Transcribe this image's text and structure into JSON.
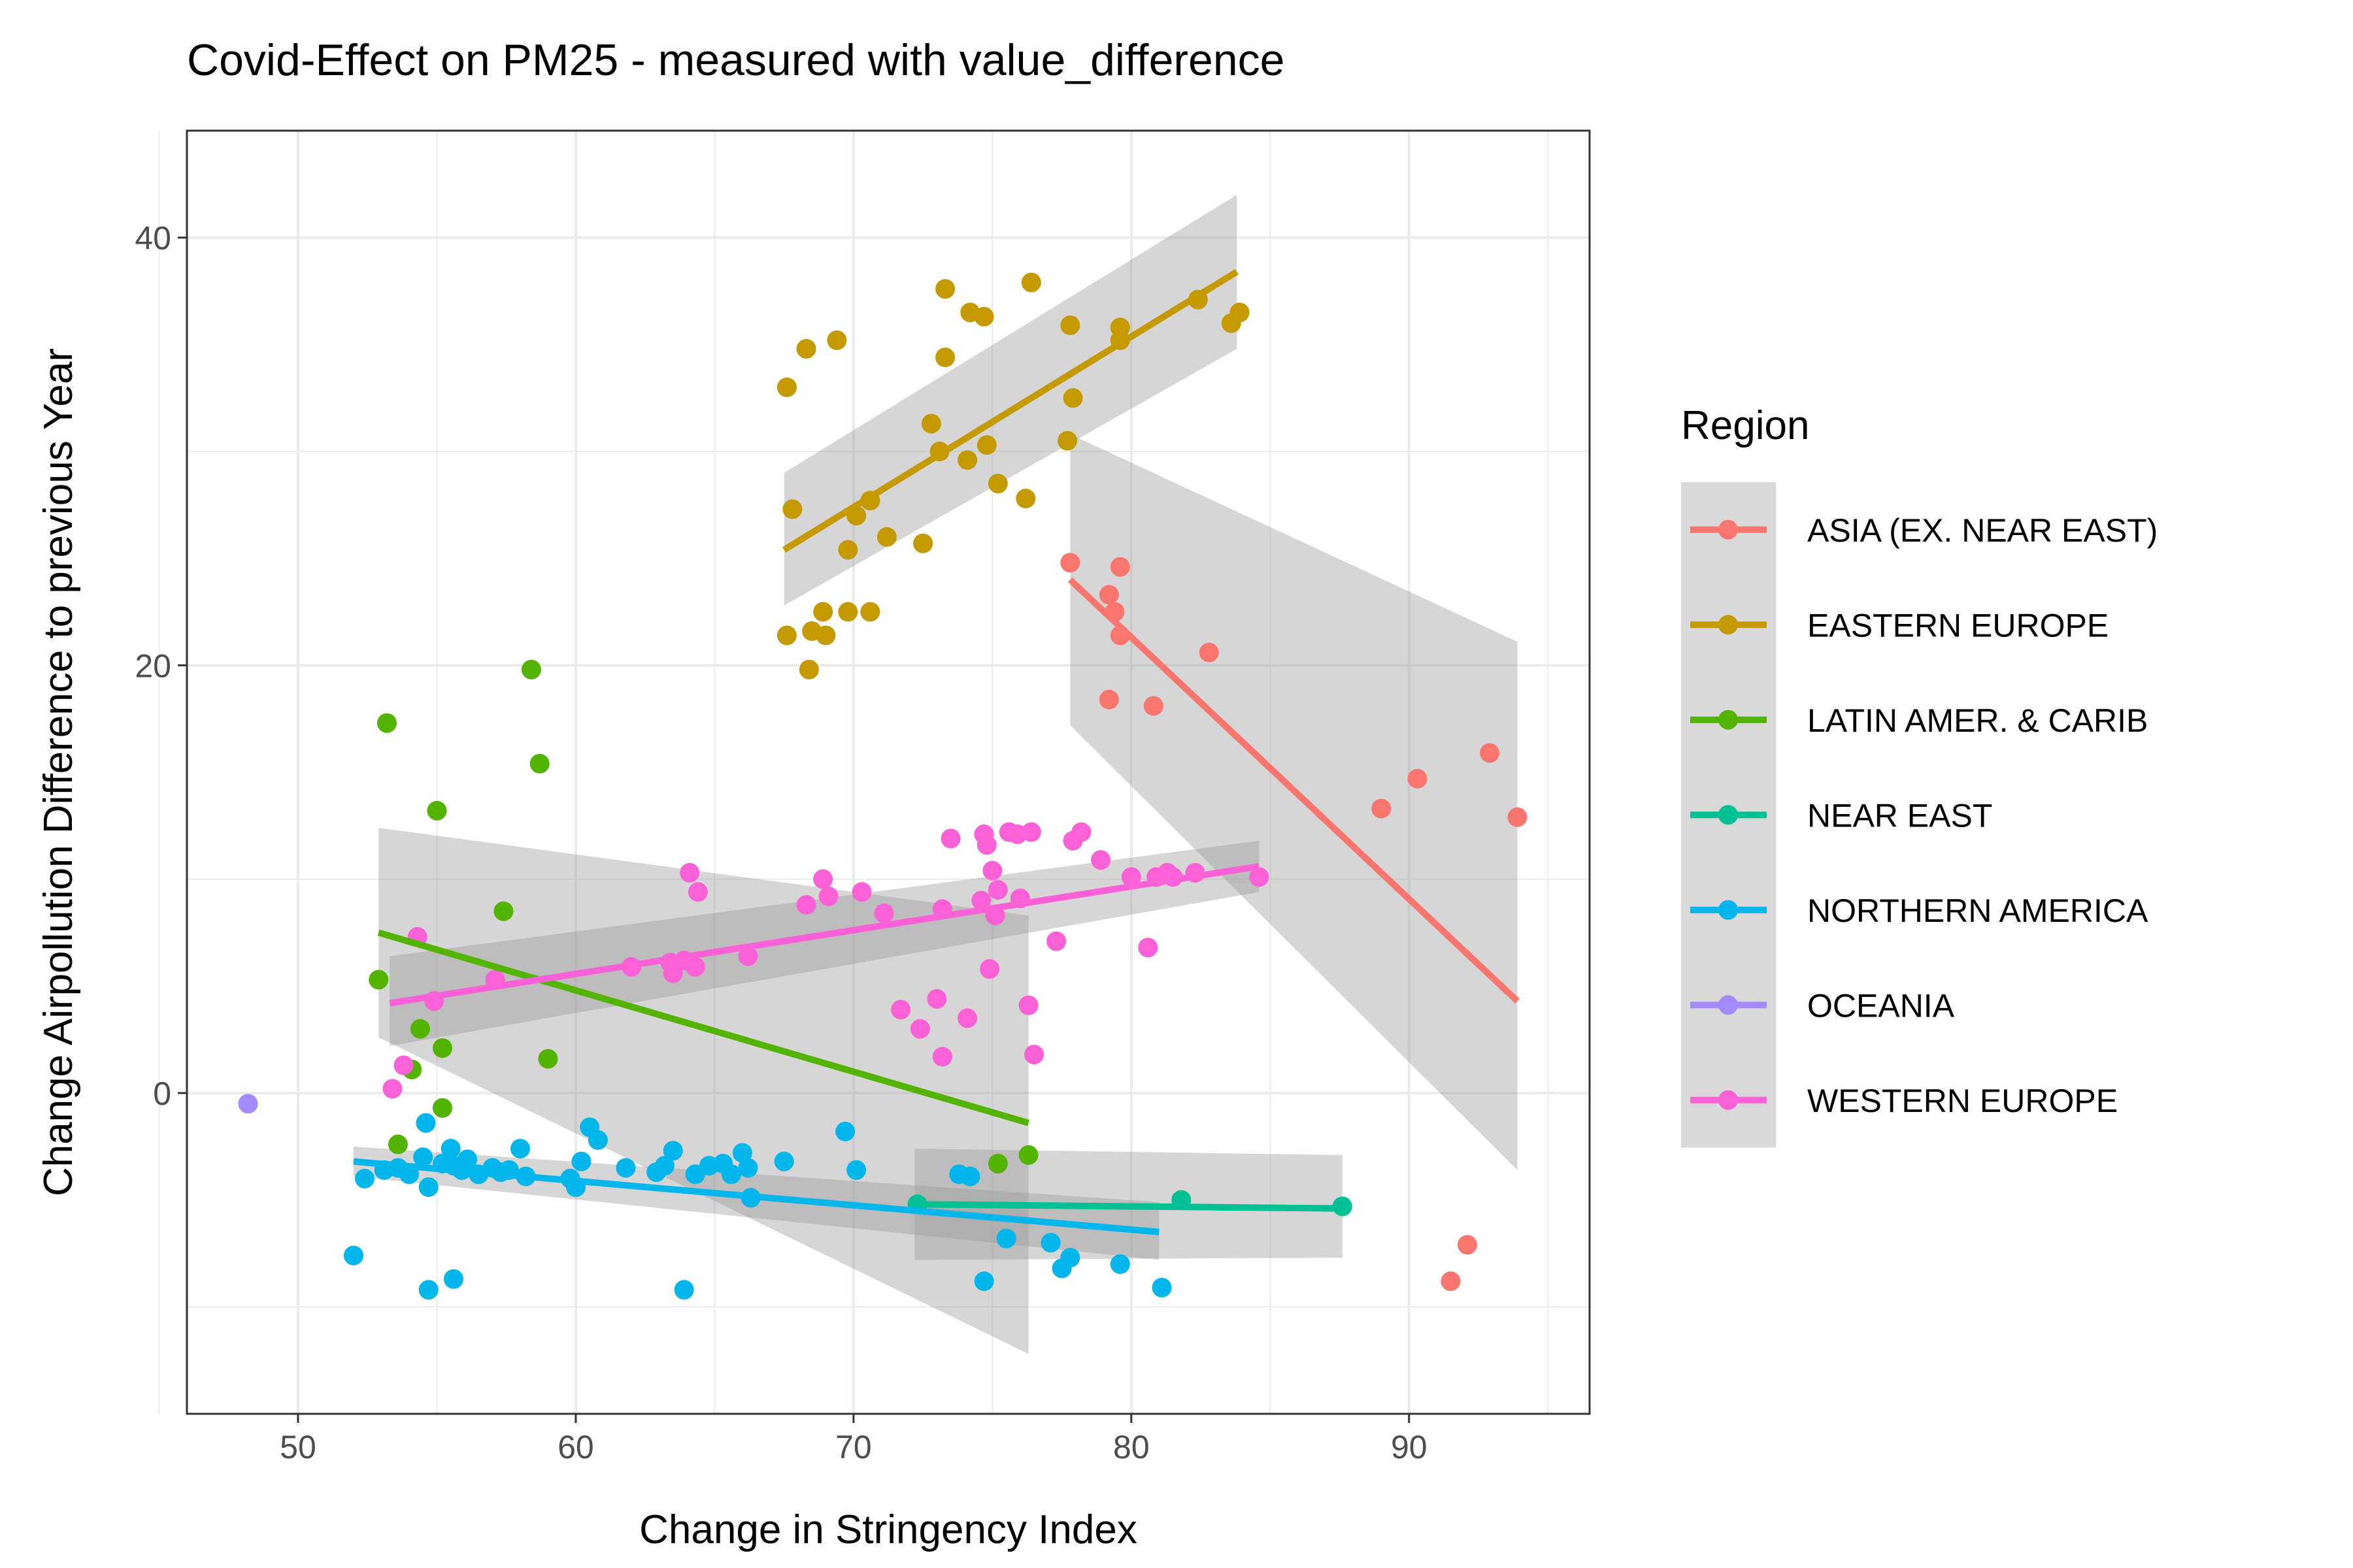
{
  "chart_data": {
    "type": "scatter",
    "title": "Covid-Effect on PM25 - measured with value_difference",
    "xlabel": "Change in Stringency Index",
    "ylabel": "Change Airpollution Difference to previous Year",
    "xlim": [
      46,
      96.5
    ],
    "ylim": [
      -15,
      45
    ],
    "x_ticks": [
      50,
      60,
      70,
      80,
      90
    ],
    "y_ticks": [
      0,
      20,
      40
    ],
    "x_tick_labels": [
      "50",
      "60",
      "70",
      "80",
      "90"
    ],
    "y_tick_labels": [
      "0",
      "20",
      "40"
    ],
    "grid": true,
    "legend": {
      "title": "Region",
      "placement": "right"
    },
    "series": [
      {
        "name": "ASIA (EX. NEAR EAST)",
        "color": "#F8766D",
        "points": [
          [
            77.8,
            24.8
          ],
          [
            79.2,
            23.3
          ],
          [
            79.6,
            24.6
          ],
          [
            79.4,
            22.5
          ],
          [
            79.6,
            21.4
          ],
          [
            82.8,
            20.6
          ],
          [
            79.2,
            18.4
          ],
          [
            80.8,
            18.1
          ],
          [
            89.0,
            13.3
          ],
          [
            90.3,
            14.7
          ],
          [
            92.9,
            15.9
          ],
          [
            93.9,
            12.9
          ],
          [
            91.5,
            -8.8
          ],
          [
            92.1,
            -7.1
          ]
        ],
        "fit": {
          "x": [
            77.8,
            93.9
          ],
          "y": [
            24.0,
            4.3
          ]
        },
        "band": {
          "upper": [
            30.8,
            21.1
          ],
          "lower": [
            17.2,
            -3.6
          ]
        }
      },
      {
        "name": "EASTERN EUROPE",
        "color": "#C49A00",
        "points": [
          [
            67.6,
            33.0
          ],
          [
            68.3,
            34.8
          ],
          [
            69.4,
            35.2
          ],
          [
            67.8,
            27.3
          ],
          [
            70.1,
            27.0
          ],
          [
            70.6,
            27.7
          ],
          [
            71.2,
            26.0
          ],
          [
            72.5,
            25.7
          ],
          [
            69.8,
            25.4
          ],
          [
            72.8,
            31.3
          ],
          [
            73.1,
            30.0
          ],
          [
            73.3,
            34.4
          ],
          [
            73.3,
            37.6
          ],
          [
            74.2,
            36.5
          ],
          [
            74.7,
            36.3
          ],
          [
            74.1,
            29.6
          ],
          [
            74.8,
            30.3
          ],
          [
            75.2,
            28.5
          ],
          [
            76.2,
            27.8
          ],
          [
            76.4,
            37.9
          ],
          [
            77.8,
            35.9
          ],
          [
            77.7,
            30.5
          ],
          [
            77.9,
            32.5
          ],
          [
            79.6,
            35.8
          ],
          [
            79.6,
            35.2
          ],
          [
            82.4,
            37.1
          ],
          [
            83.6,
            36.0
          ],
          [
            83.9,
            36.5
          ],
          [
            67.6,
            21.4
          ],
          [
            68.4,
            19.8
          ],
          [
            68.5,
            21.6
          ],
          [
            68.9,
            22.5
          ],
          [
            69.0,
            21.4
          ],
          [
            69.8,
            22.5
          ],
          [
            70.6,
            22.5
          ]
        ],
        "fit": {
          "x": [
            67.5,
            83.8
          ],
          "y": [
            25.4,
            38.4
          ]
        },
        "band": {
          "upper": [
            29.0,
            42.0
          ],
          "lower": [
            22.8,
            34.8
          ]
        }
      },
      {
        "name": "LATIN AMER. & CARIB",
        "color": "#53B400",
        "points": [
          [
            53.2,
            17.3
          ],
          [
            58.4,
            19.8
          ],
          [
            58.7,
            15.4
          ],
          [
            55.0,
            13.2
          ],
          [
            57.4,
            8.5
          ],
          [
            52.9,
            5.3
          ],
          [
            54.4,
            3.0
          ],
          [
            55.2,
            2.1
          ],
          [
            54.1,
            1.1
          ],
          [
            59.0,
            1.6
          ],
          [
            55.2,
            -0.7
          ],
          [
            53.6,
            -2.4
          ],
          [
            75.2,
            -3.3
          ],
          [
            76.3,
            -2.9
          ]
        ],
        "fit": {
          "x": [
            52.9,
            76.3
          ],
          "y": [
            7.5,
            -1.4
          ]
        },
        "band": {
          "upper": [
            12.4,
            8.3
          ],
          "lower": [
            2.6,
            -12.2
          ]
        }
      },
      {
        "name": "NEAR EAST",
        "color": "#00C094",
        "points": [
          [
            72.3,
            -5.2
          ],
          [
            81.8,
            -5.0
          ],
          [
            87.6,
            -5.3
          ]
        ],
        "fit": {
          "x": [
            72.2,
            87.6
          ],
          "y": [
            -5.2,
            -5.4
          ]
        },
        "band": {
          "upper": [
            -2.6,
            -2.9
          ],
          "lower": [
            -7.8,
            -7.7
          ]
        }
      },
      {
        "name": "NORTHERN AMERICA",
        "color": "#00B6EB",
        "points": [
          [
            52.0,
            -7.6
          ],
          [
            52.4,
            -4.0
          ],
          [
            53.1,
            -3.6
          ],
          [
            53.6,
            -3.5
          ],
          [
            54.0,
            -3.8
          ],
          [
            54.5,
            -3.0
          ],
          [
            54.6,
            -1.4
          ],
          [
            54.7,
            -4.4
          ],
          [
            55.2,
            -3.3
          ],
          [
            55.5,
            -2.6
          ],
          [
            55.6,
            -3.4
          ],
          [
            55.9,
            -3.6
          ],
          [
            56.1,
            -3.1
          ],
          [
            56.5,
            -3.8
          ],
          [
            57.0,
            -3.5
          ],
          [
            57.3,
            -3.7
          ],
          [
            57.6,
            -3.6
          ],
          [
            58.0,
            -2.6
          ],
          [
            58.2,
            -3.9
          ],
          [
            59.8,
            -4.0
          ],
          [
            60.0,
            -4.4
          ],
          [
            60.2,
            -3.2
          ],
          [
            60.5,
            -1.6
          ],
          [
            60.8,
            -2.2
          ],
          [
            61.8,
            -3.5
          ],
          [
            62.9,
            -3.7
          ],
          [
            63.2,
            -3.4
          ],
          [
            63.5,
            -2.7
          ],
          [
            64.3,
            -3.8
          ],
          [
            64.8,
            -3.4
          ],
          [
            65.3,
            -3.3
          ],
          [
            65.6,
            -3.8
          ],
          [
            66.0,
            -2.8
          ],
          [
            66.2,
            -3.5
          ],
          [
            66.3,
            -4.9
          ],
          [
            67.5,
            -3.2
          ],
          [
            69.7,
            -1.8
          ],
          [
            70.1,
            -3.6
          ],
          [
            73.8,
            -3.8
          ],
          [
            74.2,
            -3.9
          ],
          [
            75.5,
            -6.8
          ],
          [
            77.1,
            -7.0
          ],
          [
            77.5,
            -8.2
          ],
          [
            77.8,
            -7.7
          ],
          [
            79.6,
            -8.0
          ],
          [
            81.1,
            -9.1
          ],
          [
            54.7,
            -9.2
          ],
          [
            55.6,
            -8.7
          ],
          [
            63.9,
            -9.2
          ],
          [
            74.7,
            -8.8
          ]
        ],
        "fit": {
          "x": [
            52.0,
            81.0
          ],
          "y": [
            -3.2,
            -6.5
          ]
        },
        "band": {
          "upper": [
            -2.5,
            -5.1
          ],
          "lower": [
            -3.9,
            -7.8
          ]
        }
      },
      {
        "name": "OCEANIA",
        "color": "#A58AFF",
        "points": [
          [
            48.2,
            -0.5
          ]
        ]
      },
      {
        "name": "WESTERN EUROPE",
        "color": "#FB61D7",
        "points": [
          [
            53.4,
            0.2
          ],
          [
            53.8,
            1.3
          ],
          [
            54.3,
            7.3
          ],
          [
            54.9,
            4.3
          ],
          [
            57.1,
            5.3
          ],
          [
            62.0,
            5.9
          ],
          [
            63.4,
            6.1
          ],
          [
            63.5,
            5.6
          ],
          [
            63.9,
            6.2
          ],
          [
            64.3,
            5.9
          ],
          [
            64.1,
            10.3
          ],
          [
            64.4,
            9.4
          ],
          [
            66.2,
            6.4
          ],
          [
            68.3,
            8.8
          ],
          [
            68.9,
            10.0
          ],
          [
            69.1,
            9.2
          ],
          [
            70.3,
            9.4
          ],
          [
            71.1,
            8.4
          ],
          [
            71.7,
            3.9
          ],
          [
            72.4,
            3.0
          ],
          [
            73.0,
            4.4
          ],
          [
            73.2,
            1.7
          ],
          [
            73.2,
            8.6
          ],
          [
            73.5,
            11.9
          ],
          [
            74.1,
            3.5
          ],
          [
            74.6,
            9.0
          ],
          [
            74.7,
            12.1
          ],
          [
            74.8,
            11.6
          ],
          [
            74.9,
            5.8
          ],
          [
            75.0,
            10.4
          ],
          [
            75.1,
            8.3
          ],
          [
            75.2,
            9.5
          ],
          [
            75.6,
            12.2
          ],
          [
            75.9,
            12.1
          ],
          [
            76.0,
            9.1
          ],
          [
            76.3,
            4.1
          ],
          [
            76.5,
            1.8
          ],
          [
            76.4,
            12.2
          ],
          [
            77.3,
            7.1
          ],
          [
            77.9,
            11.8
          ],
          [
            78.2,
            12.2
          ],
          [
            78.9,
            10.9
          ],
          [
            80.0,
            10.1
          ],
          [
            80.6,
            6.8
          ],
          [
            80.9,
            10.1
          ],
          [
            81.3,
            10.3
          ],
          [
            81.5,
            10.1
          ],
          [
            82.3,
            10.3
          ],
          [
            84.6,
            10.1
          ]
        ],
        "fit": {
          "x": [
            53.3,
            84.6
          ],
          "y": [
            4.2,
            10.6
          ]
        },
        "band": {
          "upper": [
            6.4,
            11.8
          ],
          "lower": [
            2.2,
            9.4
          ]
        }
      }
    ]
  }
}
